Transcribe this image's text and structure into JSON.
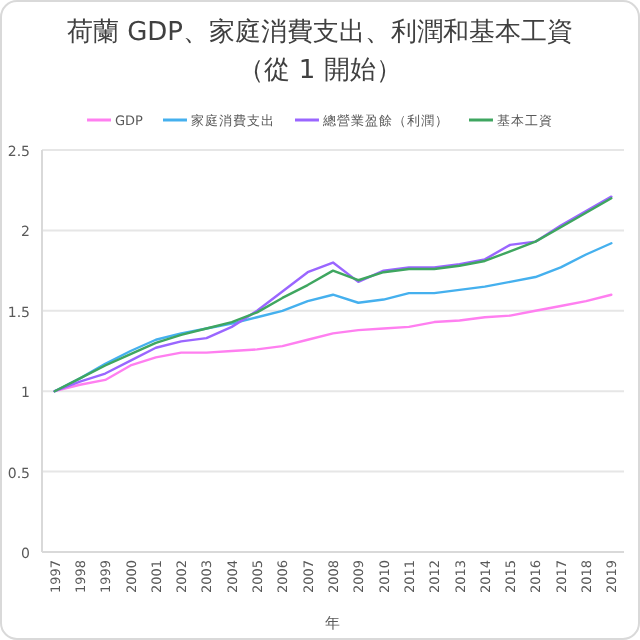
{
  "chart_data": {
    "type": "line",
    "title": "荷蘭 GDP、家庭消費支出、利潤和基本工資",
    "subtitle": "（從 1 開始）",
    "xlabel": "年",
    "categories": [
      "1997",
      "1998",
      "1999",
      "2000",
      "2001",
      "2002",
      "2003",
      "2004",
      "2005",
      "2006",
      "2007",
      "2008",
      "2009",
      "2010",
      "2011",
      "2012",
      "2013",
      "2014",
      "2015",
      "2016",
      "2017",
      "2018",
      "2019"
    ],
    "series": [
      {
        "name": "GDP",
        "color": "#ff7ff0",
        "values": [
          1.0,
          1.04,
          1.07,
          1.16,
          1.21,
          1.24,
          1.24,
          1.25,
          1.26,
          1.28,
          1.32,
          1.36,
          1.38,
          1.39,
          1.4,
          1.43,
          1.44,
          1.46,
          1.47,
          1.5,
          1.53,
          1.56,
          1.6
        ]
      },
      {
        "name": "家庭消費支出",
        "color": "#45b0ee",
        "values": [
          1.0,
          1.08,
          1.17,
          1.25,
          1.32,
          1.36,
          1.39,
          1.42,
          1.46,
          1.5,
          1.56,
          1.6,
          1.55,
          1.57,
          1.61,
          1.61,
          1.63,
          1.65,
          1.68,
          1.71,
          1.77,
          1.85,
          1.92
        ]
      },
      {
        "name": "總營業盈餘（利潤）",
        "color": "#9a66ff",
        "values": [
          1.0,
          1.06,
          1.11,
          1.19,
          1.27,
          1.31,
          1.33,
          1.4,
          1.5,
          1.62,
          1.74,
          1.8,
          1.68,
          1.75,
          1.77,
          1.77,
          1.79,
          1.82,
          1.91,
          1.93,
          2.03,
          2.12,
          2.21
        ]
      },
      {
        "name": "基本工資",
        "color": "#3fa660",
        "values": [
          1.0,
          1.08,
          1.16,
          1.23,
          1.3,
          1.35,
          1.39,
          1.43,
          1.49,
          1.58,
          1.66,
          1.75,
          1.69,
          1.74,
          1.76,
          1.76,
          1.78,
          1.81,
          1.87,
          1.93,
          2.02,
          2.11,
          2.2
        ]
      }
    ],
    "ylim": [
      0,
      2.5
    ],
    "yticks": [
      0,
      0.5,
      1,
      1.5,
      2,
      2.5
    ],
    "grid": "y",
    "legend": "top"
  }
}
